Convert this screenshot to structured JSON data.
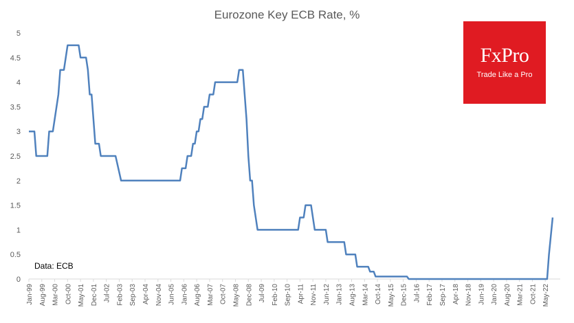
{
  "chart_data": {
    "type": "line",
    "title": "Eurozone  Key ECB Rate, %",
    "xlabel": "",
    "ylabel": "",
    "ylim": [
      0,
      5
    ],
    "yticks": [
      "0",
      "0.5",
      "1",
      "1.5",
      "2",
      "2.5",
      "3",
      "3.5",
      "4",
      "4.5",
      "5"
    ],
    "xlim": [
      "1999-01",
      "2022-12"
    ],
    "xticks": [
      {
        "label": "Jan-99",
        "date": "1999-01"
      },
      {
        "label": "Aug-99",
        "date": "1999-08"
      },
      {
        "label": "Mar-00",
        "date": "2000-03"
      },
      {
        "label": "Oct-00",
        "date": "2000-10"
      },
      {
        "label": "May-01",
        "date": "2001-05"
      },
      {
        "label": "Dec-01",
        "date": "2001-12"
      },
      {
        "label": "Jul-02",
        "date": "2002-07"
      },
      {
        "label": "Feb-03",
        "date": "2003-02"
      },
      {
        "label": "Sep-03",
        "date": "2003-09"
      },
      {
        "label": "Apr-04",
        "date": "2004-04"
      },
      {
        "label": "Nov-04",
        "date": "2004-11"
      },
      {
        "label": "Jun-05",
        "date": "2005-06"
      },
      {
        "label": "Jan-06",
        "date": "2006-01"
      },
      {
        "label": "Aug-06",
        "date": "2006-08"
      },
      {
        "label": "Mar-07",
        "date": "2007-03"
      },
      {
        "label": "Oct-07",
        "date": "2007-10"
      },
      {
        "label": "May-08",
        "date": "2008-05"
      },
      {
        "label": "Dec-08",
        "date": "2008-12"
      },
      {
        "label": "Jul-09",
        "date": "2009-07"
      },
      {
        "label": "Feb-10",
        "date": "2010-02"
      },
      {
        "label": "Sep-10",
        "date": "2010-09"
      },
      {
        "label": "Apr-11",
        "date": "2011-04"
      },
      {
        "label": "Nov-11",
        "date": "2011-11"
      },
      {
        "label": "Jun-12",
        "date": "2012-06"
      },
      {
        "label": "Jan-13",
        "date": "2013-01"
      },
      {
        "label": "Aug-13",
        "date": "2013-08"
      },
      {
        "label": "Mar-14",
        "date": "2014-03"
      },
      {
        "label": "Oct-14",
        "date": "2014-10"
      },
      {
        "label": "May-15",
        "date": "2015-05"
      },
      {
        "label": "Dec-15",
        "date": "2015-12"
      },
      {
        "label": "Jul-16",
        "date": "2016-07"
      },
      {
        "label": "Feb-17",
        "date": "2017-02"
      },
      {
        "label": "Sep-17",
        "date": "2017-09"
      },
      {
        "label": "Apr-18",
        "date": "2018-04"
      },
      {
        "label": "Nov-18",
        "date": "2018-11"
      },
      {
        "label": "Jun-19",
        "date": "2019-06"
      },
      {
        "label": "Jan-20",
        "date": "2020-01"
      },
      {
        "label": "Aug-20",
        "date": "2020-08"
      },
      {
        "label": "Mar-21",
        "date": "2021-03"
      },
      {
        "label": "Oct-21",
        "date": "2021-10"
      },
      {
        "label": "May-22",
        "date": "2022-05"
      }
    ],
    "grid": false,
    "legend": "none",
    "series": [
      {
        "color": "#4f81bd",
        "points": [
          [
            "1999-01",
            3.0
          ],
          [
            "1999-04",
            3.0
          ],
          [
            "1999-05",
            2.5
          ],
          [
            "1999-11",
            2.5
          ],
          [
            "1999-12",
            3.0
          ],
          [
            "2000-02",
            3.0
          ],
          [
            "2000-03",
            3.25
          ],
          [
            "2000-04",
            3.5
          ],
          [
            "2000-05",
            3.75
          ],
          [
            "2000-06",
            4.25
          ],
          [
            "2000-08",
            4.25
          ],
          [
            "2000-09",
            4.5
          ],
          [
            "2000-10",
            4.75
          ],
          [
            "2001-04",
            4.75
          ],
          [
            "2001-05",
            4.5
          ],
          [
            "2001-08",
            4.5
          ],
          [
            "2001-09",
            4.25
          ],
          [
            "2001-10",
            3.75
          ],
          [
            "2001-11",
            3.75
          ],
          [
            "2001-12",
            3.25
          ],
          [
            "2002-01",
            2.75
          ],
          [
            "2002-03",
            2.75
          ],
          [
            "2002-04",
            2.5
          ],
          [
            "2002-12",
            2.5
          ],
          [
            "2003-03",
            2.0
          ],
          [
            "2005-11",
            2.0
          ],
          [
            "2005-12",
            2.25
          ],
          [
            "2006-02",
            2.25
          ],
          [
            "2006-03",
            2.5
          ],
          [
            "2006-05",
            2.5
          ],
          [
            "2006-06",
            2.75
          ],
          [
            "2006-07",
            2.75
          ],
          [
            "2006-08",
            3.0
          ],
          [
            "2006-09",
            3.0
          ],
          [
            "2006-10",
            3.25
          ],
          [
            "2006-11",
            3.25
          ],
          [
            "2006-12",
            3.5
          ],
          [
            "2007-02",
            3.5
          ],
          [
            "2007-03",
            3.75
          ],
          [
            "2007-05",
            3.75
          ],
          [
            "2007-06",
            4.0
          ],
          [
            "2008-06",
            4.0
          ],
          [
            "2008-07",
            4.25
          ],
          [
            "2008-09",
            4.25
          ],
          [
            "2008-10",
            3.75
          ],
          [
            "2008-11",
            3.25
          ],
          [
            "2008-12",
            2.5
          ],
          [
            "2009-01",
            2.0
          ],
          [
            "2009-02",
            2.0
          ],
          [
            "2009-03",
            1.5
          ],
          [
            "2009-04",
            1.25
          ],
          [
            "2009-05",
            1.0
          ],
          [
            "2011-03",
            1.0
          ],
          [
            "2011-04",
            1.25
          ],
          [
            "2011-06",
            1.25
          ],
          [
            "2011-07",
            1.5
          ],
          [
            "2011-10",
            1.5
          ],
          [
            "2011-11",
            1.25
          ],
          [
            "2011-12",
            1.0
          ],
          [
            "2012-06",
            1.0
          ],
          [
            "2012-07",
            0.75
          ],
          [
            "2013-04",
            0.75
          ],
          [
            "2013-05",
            0.5
          ],
          [
            "2013-10",
            0.5
          ],
          [
            "2013-11",
            0.25
          ],
          [
            "2014-05",
            0.25
          ],
          [
            "2014-06",
            0.15
          ],
          [
            "2014-08",
            0.15
          ],
          [
            "2014-09",
            0.05
          ],
          [
            "2016-02",
            0.05
          ],
          [
            "2016-03",
            0.0
          ],
          [
            "2022-06",
            0.0
          ],
          [
            "2022-07",
            0.5
          ],
          [
            "2022-09",
            1.25
          ]
        ]
      }
    ],
    "annotations": [
      "Data: ECB"
    ]
  },
  "branding": {
    "logo_text": "FxPro",
    "tagline": "Trade Like a Pro",
    "logo_color": "#e01b22"
  }
}
